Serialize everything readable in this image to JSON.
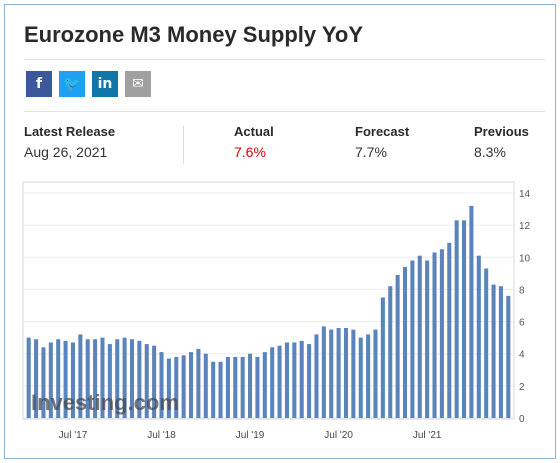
{
  "title": "Eurozone M3 Money Supply YoY",
  "share": [
    {
      "name": "facebook-share-button",
      "glyph": "f",
      "color": "#3b5998"
    },
    {
      "name": "twitter-share-button",
      "glyph": "🐦",
      "color": "#1da1f2"
    },
    {
      "name": "linkedin-share-button",
      "glyph": "in",
      "color": "#0e76a8"
    },
    {
      "name": "email-share-button",
      "glyph": "✉",
      "color": "#a0a0a0"
    }
  ],
  "stats": {
    "latest_label": "Latest Release",
    "latest_value": "Aug 26, 2021",
    "actual_label": "Actual",
    "actual_value": "7.6%",
    "forecast_label": "Forecast",
    "forecast_value": "7.7%",
    "previous_label": "Previous",
    "previous_value": "8.3%"
  },
  "watermark": "Investing.com",
  "colors": {
    "bar": "#5b84bc",
    "actual": "#e40000",
    "grid": "#ececec"
  },
  "chart_data": {
    "type": "bar",
    "title": "",
    "xlabel": "",
    "ylabel": "",
    "ylim": [
      0,
      14
    ],
    "yticks": [
      0,
      2,
      4,
      6,
      8,
      10,
      12,
      14
    ],
    "xtick_labels": [
      "Jul '17",
      "Jul '18",
      "Jul '19",
      "Jul '20",
      "Jul '21"
    ],
    "xtick_index": [
      6,
      18,
      30,
      42,
      54
    ],
    "grid": true,
    "values": [
      5.0,
      4.9,
      4.4,
      4.7,
      4.9,
      4.8,
      4.7,
      5.2,
      4.9,
      4.9,
      5.0,
      4.6,
      4.9,
      5.0,
      4.9,
      4.8,
      4.6,
      4.5,
      4.1,
      3.7,
      3.8,
      3.9,
      4.1,
      4.3,
      4.0,
      3.5,
      3.5,
      3.8,
      3.8,
      3.8,
      4.0,
      3.8,
      4.1,
      4.4,
      4.5,
      4.7,
      4.7,
      4.8,
      4.6,
      5.2,
      5.7,
      5.5,
      5.6,
      5.6,
      5.5,
      5.0,
      5.2,
      5.5,
      7.5,
      8.2,
      8.9,
      9.4,
      9.8,
      10.1,
      9.8,
      10.3,
      10.5,
      10.9,
      12.3,
      12.3,
      13.2,
      10.1,
      9.3,
      8.3,
      8.2,
      7.6
    ]
  }
}
